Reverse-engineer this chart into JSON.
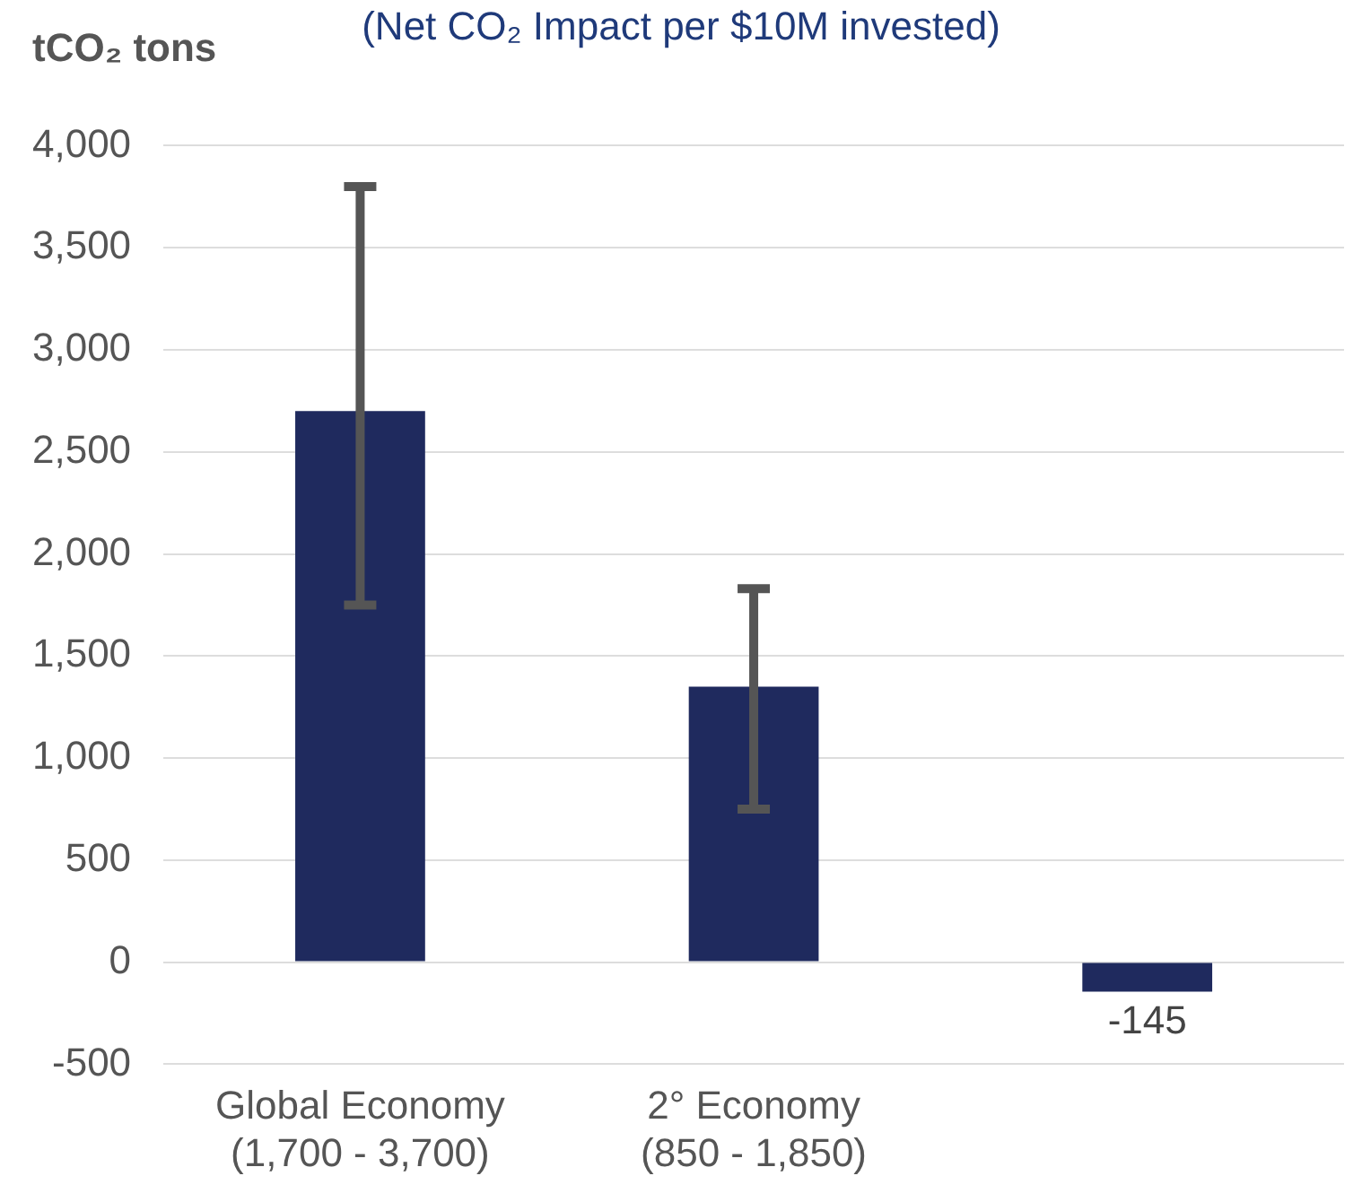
{
  "chart_data": {
    "type": "bar",
    "title": "(Net CO₂ Impact per $10M invested)",
    "ylabel": "tCO₂ tons",
    "categories": [
      "Global Economy\n(1,700 - 3,700)",
      "2° Economy\n(850 - 1,850)",
      null
    ],
    "values": [
      2700,
      1350,
      -145
    ],
    "color": "#1f2a5e",
    "errors": [
      [
        1750,
        3800
      ],
      [
        750,
        1830
      ],
      null
    ],
    "value_labels": [
      null,
      null,
      "-145"
    ],
    "ylim": [
      -500,
      4000
    ],
    "yticks": [
      -500,
      0,
      500,
      {
        "value": 1000,
        "label": "1,000"
      },
      {
        "value": 1500,
        "label": "1,500"
      },
      {
        "value": 2000,
        "label": "2,000"
      },
      {
        "value": 2500,
        "label": "2,500"
      },
      {
        "value": 3000,
        "label": "3,000"
      },
      {
        "value": 3500,
        "label": "3,500"
      },
      {
        "value": 4000,
        "label": "4,000"
      }
    ],
    "grid": "y",
    "legend": false
  }
}
